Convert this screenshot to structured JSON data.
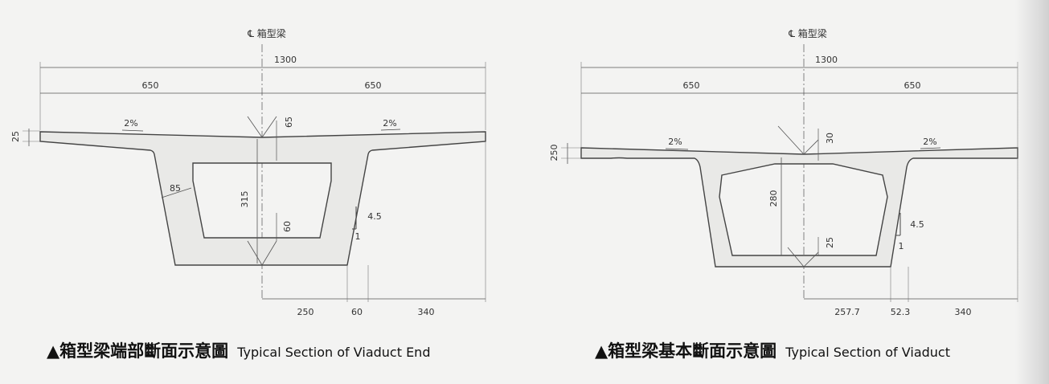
{
  "left": {
    "centerline_label": "℄ 箱型梁",
    "dims": {
      "total": "1300",
      "half_left": "650",
      "half_right": "650",
      "deck_thickness": "25",
      "slope_left": "2%",
      "slope_right": "2%",
      "top_slab": "65",
      "web": "85",
      "height": "315",
      "bottom_slab": "60",
      "web_slope": "4.5",
      "web_slope_run": "1",
      "bottom_half": "250",
      "web_base": "60",
      "cantilever": "340"
    },
    "caption_cjk": "▲箱型梁端部斷面示意圖",
    "caption_en": "Typical Section of Viaduct End"
  },
  "right": {
    "centerline_label": "℄ 箱型梁",
    "dims": {
      "total": "1300",
      "half_left": "650",
      "half_right": "650",
      "deck_thickness": "250",
      "slope_left": "2%",
      "slope_right": "2%",
      "top_slab": "30",
      "height": "280",
      "bottom_slab": "25",
      "web_slope": "4.5",
      "web_slope_run": "1",
      "bottom_half": "257.7",
      "web_base": "52.3",
      "cantilever": "340"
    },
    "caption_cjk": "▲箱型梁基本斷面示意圖",
    "caption_en": "Typical Section of Viaduct"
  }
}
